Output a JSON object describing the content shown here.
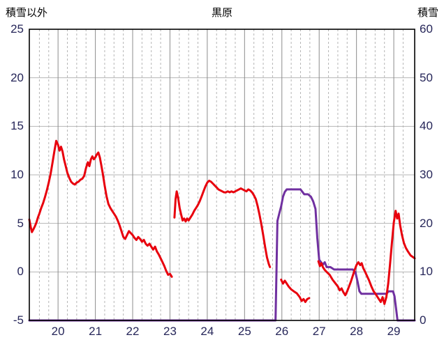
{
  "header": {
    "left_axis_title": "積雪以外",
    "title": "黒原",
    "right_axis_title": "積雪"
  },
  "style": {
    "grid_color": "#b5b5b5",
    "day_grid_color": "#8c8c8c",
    "border_color": "#000000",
    "tick_label_color": "#262659",
    "title_color": "#000000"
  },
  "chart_data": {
    "type": "line",
    "title": "黒原",
    "x_axis": {
      "min": 19.23,
      "max": 29.56,
      "ticks": [
        20,
        21,
        22,
        23,
        24,
        25,
        26,
        27,
        28,
        29
      ],
      "minor_grid_step_days": 0.25
    },
    "left_axis": {
      "label": "積雪以外",
      "min": -5,
      "max": 25,
      "ticks": [
        25,
        20,
        15,
        10,
        5,
        0,
        -5
      ]
    },
    "right_axis": {
      "label": "積雪",
      "min": 0,
      "max": 60,
      "ticks": [
        60,
        50,
        40,
        30,
        20,
        10,
        0
      ]
    },
    "legend": "none",
    "grid": "on",
    "series": [
      {
        "name": "積雪",
        "axis": "right",
        "color": "#7030a0",
        "segments": [
          [
            [
              19.23,
              0
            ],
            [
              25.83,
              0
            ],
            [
              25.88,
              20.5
            ],
            [
              25.93,
              22
            ],
            [
              25.98,
              23.5
            ],
            [
              26.03,
              25.5
            ],
            [
              26.08,
              26.5
            ],
            [
              26.13,
              27
            ],
            [
              26.2,
              27
            ],
            [
              26.3,
              27
            ],
            [
              26.4,
              27
            ],
            [
              26.5,
              27
            ],
            [
              26.55,
              26.5
            ],
            [
              26.6,
              26
            ],
            [
              26.7,
              26
            ],
            [
              26.78,
              25.5
            ],
            [
              26.84,
              24.5
            ],
            [
              26.9,
              23
            ],
            [
              26.95,
              17
            ],
            [
              27.0,
              12.5
            ],
            [
              27.05,
              12
            ],
            [
              27.1,
              11.5
            ],
            [
              27.15,
              12
            ],
            [
              27.2,
              11
            ],
            [
              27.3,
              11
            ],
            [
              27.4,
              10.5
            ],
            [
              27.5,
              10.5
            ],
            [
              27.6,
              10.5
            ],
            [
              27.7,
              10.5
            ],
            [
              27.8,
              10.5
            ],
            [
              27.9,
              10.5
            ],
            [
              27.97,
              10
            ],
            [
              28.03,
              8
            ],
            [
              28.08,
              6
            ],
            [
              28.13,
              5.5
            ],
            [
              28.2,
              5.5
            ],
            [
              28.3,
              5.5
            ],
            [
              28.4,
              5.5
            ],
            [
              28.5,
              5.5
            ],
            [
              28.6,
              5.5
            ],
            [
              28.7,
              5.5
            ],
            [
              28.8,
              5.5
            ],
            [
              28.86,
              6
            ],
            [
              28.92,
              6
            ],
            [
              28.98,
              6
            ],
            [
              29.02,
              5
            ],
            [
              29.06,
              2.5
            ],
            [
              29.1,
              0
            ],
            [
              29.56,
              0
            ]
          ]
        ]
      },
      {
        "name": "積雪以外",
        "axis": "left",
        "color": "#e8000d",
        "segments": [
          [
            [
              19.23,
              5.4
            ],
            [
              19.27,
              4.6
            ],
            [
              19.3,
              4.1
            ],
            [
              19.34,
              4.4
            ],
            [
              19.38,
              4.7
            ],
            [
              19.42,
              5.1
            ],
            [
              19.46,
              5.6
            ],
            [
              19.5,
              6.0
            ],
            [
              19.55,
              6.6
            ],
            [
              19.6,
              7.1
            ],
            [
              19.65,
              7.7
            ],
            [
              19.7,
              8.4
            ],
            [
              19.75,
              9.2
            ],
            [
              19.8,
              10.1
            ],
            [
              19.85,
              11.2
            ],
            [
              19.9,
              12.4
            ],
            [
              19.95,
              13.5
            ],
            [
              20.0,
              13.1
            ],
            [
              20.04,
              12.5
            ],
            [
              20.08,
              12.9
            ],
            [
              20.12,
              12.4
            ],
            [
              20.16,
              11.6
            ],
            [
              20.2,
              11.0
            ],
            [
              20.25,
              10.2
            ],
            [
              20.3,
              9.7
            ],
            [
              20.35,
              9.3
            ],
            [
              20.4,
              9.1
            ],
            [
              20.45,
              9.0
            ],
            [
              20.5,
              9.2
            ],
            [
              20.55,
              9.3
            ],
            [
              20.6,
              9.5
            ],
            [
              20.65,
              9.6
            ],
            [
              20.7,
              9.9
            ],
            [
              20.75,
              10.7
            ],
            [
              20.8,
              11.3
            ],
            [
              20.84,
              10.9
            ],
            [
              20.88,
              11.6
            ],
            [
              20.92,
              11.9
            ],
            [
              20.96,
              11.6
            ],
            [
              21.0,
              11.8
            ],
            [
              21.04,
              12.1
            ],
            [
              21.08,
              12.3
            ],
            [
              21.12,
              11.8
            ],
            [
              21.16,
              11.0
            ],
            [
              21.2,
              10.1
            ],
            [
              21.25,
              8.9
            ],
            [
              21.3,
              7.8
            ],
            [
              21.35,
              7.0
            ],
            [
              21.4,
              6.6
            ],
            [
              21.45,
              6.3
            ],
            [
              21.5,
              6.0
            ],
            [
              21.55,
              5.7
            ],
            [
              21.6,
              5.3
            ],
            [
              21.65,
              4.8
            ],
            [
              21.7,
              4.2
            ],
            [
              21.75,
              3.6
            ],
            [
              21.8,
              3.4
            ],
            [
              21.85,
              3.8
            ],
            [
              21.9,
              4.2
            ],
            [
              21.95,
              4.0
            ],
            [
              22.0,
              3.8
            ],
            [
              22.05,
              3.5
            ],
            [
              22.1,
              3.3
            ],
            [
              22.15,
              3.6
            ],
            [
              22.2,
              3.4
            ],
            [
              22.25,
              3.1
            ],
            [
              22.3,
              3.3
            ],
            [
              22.35,
              2.9
            ],
            [
              22.4,
              2.7
            ],
            [
              22.45,
              2.9
            ],
            [
              22.5,
              2.6
            ],
            [
              22.55,
              2.3
            ],
            [
              22.6,
              2.6
            ],
            [
              22.65,
              2.1
            ],
            [
              22.7,
              1.8
            ],
            [
              22.75,
              1.4
            ],
            [
              22.8,
              1.0
            ],
            [
              22.85,
              0.6
            ],
            [
              22.9,
              0.1
            ],
            [
              22.95,
              -0.3
            ],
            [
              23.0,
              -0.2
            ],
            [
              23.05,
              -0.5
            ]
          ],
          [
            [
              23.12,
              5.6
            ],
            [
              23.15,
              7.5
            ],
            [
              23.18,
              8.3
            ],
            [
              23.22,
              7.6
            ],
            [
              23.26,
              6.6
            ],
            [
              23.3,
              5.9
            ],
            [
              23.34,
              5.3
            ],
            [
              23.38,
              5.5
            ],
            [
              23.42,
              5.2
            ],
            [
              23.46,
              5.5
            ],
            [
              23.5,
              5.3
            ],
            [
              23.55,
              5.6
            ],
            [
              23.6,
              5.9
            ],
            [
              23.65,
              6.3
            ],
            [
              23.7,
              6.6
            ],
            [
              23.75,
              6.9
            ],
            [
              23.8,
              7.3
            ],
            [
              23.85,
              7.8
            ],
            [
              23.9,
              8.3
            ],
            [
              23.95,
              8.8
            ],
            [
              24.0,
              9.2
            ],
            [
              24.05,
              9.4
            ],
            [
              24.1,
              9.3
            ],
            [
              24.15,
              9.1
            ],
            [
              24.2,
              8.9
            ],
            [
              24.25,
              8.7
            ],
            [
              24.3,
              8.5
            ],
            [
              24.35,
              8.4
            ],
            [
              24.4,
              8.3
            ],
            [
              24.45,
              8.2
            ],
            [
              24.5,
              8.2
            ],
            [
              24.55,
              8.3
            ],
            [
              24.6,
              8.2
            ],
            [
              24.65,
              8.3
            ],
            [
              24.7,
              8.2
            ],
            [
              24.75,
              8.3
            ],
            [
              24.8,
              8.4
            ],
            [
              24.85,
              8.5
            ],
            [
              24.9,
              8.6
            ],
            [
              24.95,
              8.5
            ],
            [
              25.0,
              8.4
            ],
            [
              25.05,
              8.3
            ],
            [
              25.1,
              8.5
            ],
            [
              25.15,
              8.4
            ],
            [
              25.2,
              8.2
            ],
            [
              25.25,
              7.9
            ],
            [
              25.3,
              7.5
            ],
            [
              25.35,
              6.8
            ],
            [
              25.4,
              5.9
            ],
            [
              25.45,
              4.9
            ],
            [
              25.5,
              3.8
            ],
            [
              25.55,
              2.6
            ],
            [
              25.6,
              1.5
            ],
            [
              25.65,
              0.8
            ],
            [
              25.68,
              0.5
            ]
          ],
          [
            [
              25.98,
              -0.8
            ],
            [
              26.03,
              -1.2
            ],
            [
              26.08,
              -0.9
            ],
            [
              26.13,
              -1.2
            ],
            [
              26.18,
              -1.5
            ],
            [
              26.25,
              -1.8
            ],
            [
              26.32,
              -2.0
            ],
            [
              26.4,
              -2.2
            ],
            [
              26.48,
              -2.6
            ],
            [
              26.53,
              -3.0
            ],
            [
              26.58,
              -2.8
            ],
            [
              26.63,
              -3.1
            ],
            [
              26.68,
              -2.8
            ],
            [
              26.73,
              -2.7
            ]
          ],
          [
            [
              26.98,
              1.1
            ],
            [
              27.02,
              0.6
            ],
            [
              27.06,
              0.9
            ],
            [
              27.1,
              0.5
            ],
            [
              27.15,
              0.2
            ],
            [
              27.2,
              0.0
            ],
            [
              27.28,
              -0.3
            ],
            [
              27.36,
              -0.8
            ],
            [
              27.44,
              -1.2
            ],
            [
              27.5,
              -1.5
            ],
            [
              27.55,
              -1.9
            ],
            [
              27.6,
              -1.7
            ],
            [
              27.65,
              -2.1
            ],
            [
              27.7,
              -2.4
            ],
            [
              27.75,
              -2.0
            ],
            [
              27.8,
              -1.5
            ],
            [
              27.85,
              -1.0
            ],
            [
              27.9,
              -0.4
            ],
            [
              27.95,
              0.2
            ],
            [
              28.0,
              0.7
            ],
            [
              28.05,
              1.0
            ],
            [
              28.1,
              0.7
            ],
            [
              28.14,
              0.9
            ],
            [
              28.18,
              0.4
            ],
            [
              28.22,
              0.1
            ],
            [
              28.28,
              -0.4
            ],
            [
              28.34,
              -0.9
            ],
            [
              28.4,
              -1.5
            ],
            [
              28.46,
              -2.0
            ],
            [
              28.5,
              -2.2
            ],
            [
              28.55,
              -2.5
            ],
            [
              28.6,
              -2.8
            ],
            [
              28.65,
              -3.1
            ],
            [
              28.7,
              -2.6
            ],
            [
              28.75,
              -3.3
            ],
            [
              28.8,
              -2.6
            ],
            [
              28.85,
              -1.2
            ],
            [
              28.9,
              0.8
            ],
            [
              28.95,
              3.0
            ],
            [
              29.0,
              5.1
            ],
            [
              29.05,
              6.3
            ],
            [
              29.09,
              5.5
            ],
            [
              29.13,
              6.0
            ],
            [
              29.17,
              4.8
            ],
            [
              29.22,
              3.8
            ],
            [
              29.27,
              3.0
            ],
            [
              29.32,
              2.5
            ],
            [
              29.38,
              2.1
            ],
            [
              29.45,
              1.7
            ],
            [
              29.56,
              1.4
            ]
          ]
        ]
      }
    ]
  }
}
